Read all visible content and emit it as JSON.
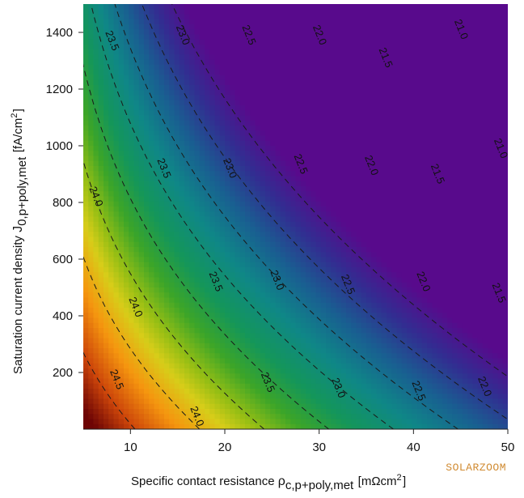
{
  "chart_data": {
    "type": "heatmap",
    "title": "",
    "xlabel": "Specific contact resistance ρc,p+poly,met [mΩcm²]",
    "ylabel": "Saturation current density J0,p+poly,met [fA/cm²]",
    "x_axis": {
      "range": [
        5,
        50
      ],
      "ticks": [
        10,
        20,
        30,
        40,
        50
      ]
    },
    "y_axis": {
      "range": [
        0,
        1500
      ],
      "ticks": [
        200,
        400,
        600,
        800,
        1000,
        1200,
        1400
      ]
    },
    "z_range": [
      20.8,
      24.8
    ],
    "colormap": "darkred → orange → yellow → green → teal → blue → purple (high to low)",
    "contour_levels": [
      21.0,
      21.5,
      22.0,
      22.5,
      23.0,
      23.5,
      24.0,
      24.5
    ],
    "contour_labels": [
      {
        "text": "24.5",
        "x": 8.5,
        "y": 175
      },
      {
        "text": "24.0",
        "x": 6.3,
        "y": 820
      },
      {
        "text": "24.0",
        "x": 10.5,
        "y": 430
      },
      {
        "text": "24.0",
        "x": 17,
        "y": 45
      },
      {
        "text": "23.5",
        "x": 8,
        "y": 1370
      },
      {
        "text": "23.5",
        "x": 13.5,
        "y": 920
      },
      {
        "text": "23.5",
        "x": 19,
        "y": 520
      },
      {
        "text": "23.5",
        "x": 24.5,
        "y": 165
      },
      {
        "text": "23.0",
        "x": 15.5,
        "y": 1390
      },
      {
        "text": "23.0",
        "x": 20.5,
        "y": 920
      },
      {
        "text": "23.0",
        "x": 25.5,
        "y": 525
      },
      {
        "text": "23.0",
        "x": 32,
        "y": 145
      },
      {
        "text": "22.5",
        "x": 22.5,
        "y": 1390
      },
      {
        "text": "22.5",
        "x": 28,
        "y": 935
      },
      {
        "text": "22.5",
        "x": 33,
        "y": 510
      },
      {
        "text": "22.5",
        "x": 40.5,
        "y": 135
      },
      {
        "text": "22.0",
        "x": 30,
        "y": 1390
      },
      {
        "text": "22.0",
        "x": 35.5,
        "y": 930
      },
      {
        "text": "22.0",
        "x": 41,
        "y": 520
      },
      {
        "text": "22.0",
        "x": 47.5,
        "y": 150
      },
      {
        "text": "21.5",
        "x": 37,
        "y": 1310
      },
      {
        "text": "21.5",
        "x": 42.5,
        "y": 900
      },
      {
        "text": "21.5",
        "x": 49,
        "y": 480
      },
      {
        "text": "21.0",
        "x": 45,
        "y": 1410
      },
      {
        "text": "21.0",
        "x": 49.2,
        "y": 990
      }
    ]
  },
  "watermark": "SOLARZOOM"
}
